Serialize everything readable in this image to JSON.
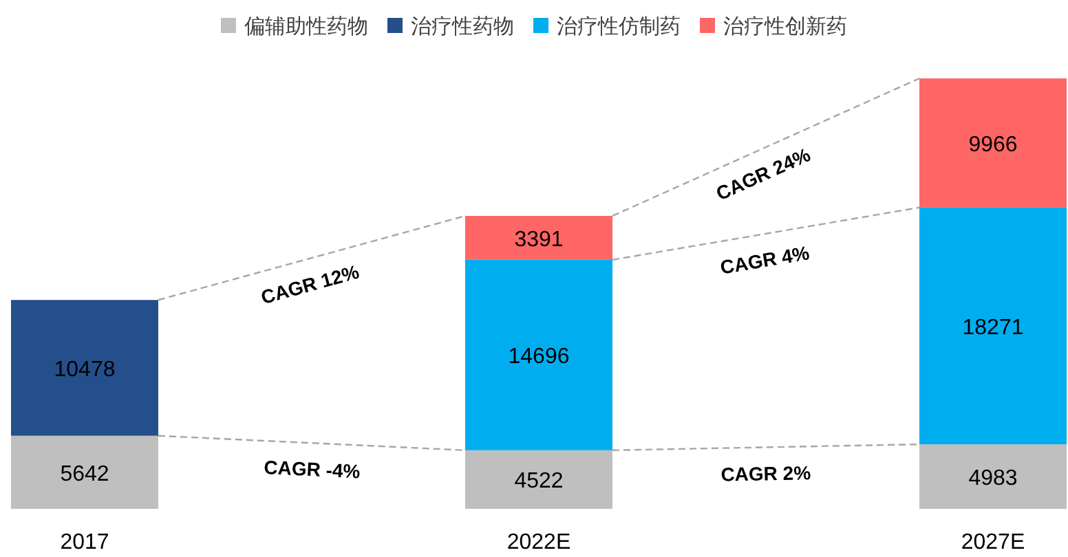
{
  "chart_data": {
    "type": "bar",
    "stacked": true,
    "data_labels": true,
    "legend": "top",
    "categories": [
      "2017",
      "2022E",
      "2027E"
    ],
    "series": [
      {
        "name": "偏辅助性药物",
        "color": "#bfbfbf",
        "values": [
          5642,
          4522,
          4983
        ]
      },
      {
        "name": "治疗性药物",
        "color": "#244f8a",
        "values": [
          10478,
          null,
          null
        ]
      },
      {
        "name": "治疗性仿制药",
        "color": "#00aeef",
        "values": [
          null,
          14696,
          18271
        ]
      },
      {
        "name": "治疗性创新药",
        "color": "#ff6666",
        "values": [
          null,
          3391,
          9966
        ]
      }
    ],
    "annotations": [
      "CAGR 12%",
      "CAGR -4%",
      "CAGR 24%",
      "CAGR 4%",
      "CAGR 2%"
    ]
  }
}
